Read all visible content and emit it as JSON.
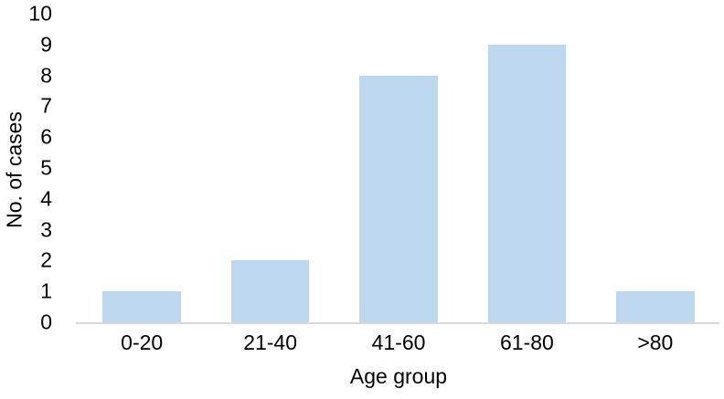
{
  "figure": {
    "background": "#ffffff"
  },
  "chart_data": {
    "type": "bar",
    "categories": [
      "0-20",
      "21-40",
      "41-60",
      "61-80",
      ">80"
    ],
    "values": [
      1,
      2,
      8,
      9,
      1
    ],
    "title": "",
    "xlabel": "Age group",
    "ylabel": "No. of cases",
    "ylim": [
      0,
      10
    ],
    "yticks": [
      0,
      1,
      2,
      3,
      4,
      5,
      6,
      7,
      8,
      9,
      10
    ],
    "grid": "off",
    "legend": "none",
    "bar_color": "#BDD7EE",
    "axis_line_color": "#D9D9D9",
    "text_color": "#000000"
  }
}
